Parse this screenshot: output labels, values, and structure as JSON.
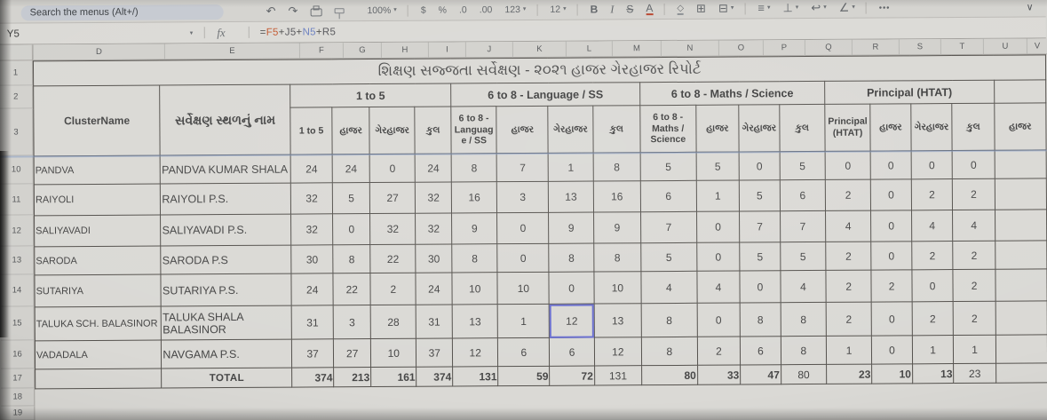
{
  "icons": {
    "undo": "↶",
    "redo": "↷",
    "dropdown": "▾",
    "fill_color": "◇",
    "borders": "⊞",
    "merge_cells": "⊟",
    "horizontal_align": "≡",
    "vertical_align": "⊥",
    "text_wrap": "↩",
    "text_rotation": "∠",
    "more_toolbar": "•••",
    "collapse": "∨"
  },
  "toolbar": {
    "search_placeholder": "Search the menus (Alt+/)",
    "zoom_value": "100%",
    "format_currency": "$",
    "format_percent": "%",
    "format_decrease_decimal": ".0",
    "format_increase_decimal": ".00",
    "format_more": "123",
    "font_size_value": "12",
    "bold": "B",
    "italic": "I",
    "strikethrough": "S",
    "text_color": "A"
  },
  "formula_bar": {
    "name_box": "Y5",
    "fx_label": "fx",
    "formula_parts": [
      {
        "text": "=",
        "color": "#4d4d4d"
      },
      {
        "text": "F5",
        "color": "#c45a32"
      },
      {
        "text": "+",
        "color": "#4d4d4d"
      },
      {
        "text": "J5",
        "color": "#55555a"
      },
      {
        "text": "+",
        "color": "#4d4d4d"
      },
      {
        "text": "N5",
        "color": "#6a7fc0"
      },
      {
        "text": "+",
        "color": "#4d4d4d"
      },
      {
        "text": "R5",
        "color": "#55555a"
      }
    ]
  },
  "grid": {
    "column_letters": [
      "D",
      "E",
      "F",
      "G",
      "H",
      "I",
      "J",
      "K",
      "L",
      "M",
      "N",
      "O",
      "P",
      "Q",
      "R",
      "S",
      "T",
      "U",
      "V"
    ],
    "row_numbers": [
      "1",
      "2",
      "3",
      "10",
      "11",
      "12",
      "13",
      "14",
      "15",
      "16",
      "17",
      "18",
      "19"
    ]
  },
  "sheet": {
    "title": "શિક્ષણ સજ્જતા સર્વેક્ષણ - ૨૦૨૧ હાજર ગેરહાજર રિપોર્ટ",
    "header": {
      "cluster_label": "ClusterName",
      "place_label": "સર્વેક્ષણ સ્થળનું નામ",
      "groups": [
        "1 to 5",
        "6 to 8 - Language / SS",
        "6 to 8 - Maths / Science",
        "Principal (HTAT)"
      ],
      "subheaders": [
        "1 to 5",
        "હાજર",
        "ગેરહાજર",
        "કુલ",
        "6 to 8 - Language / SS",
        "હાજર",
        "ગેરહાજર",
        "કુલ",
        "6 to 8 - Maths / Science",
        "હાજર",
        "ગેરહાજર",
        "કુલ",
        "Principal (HTAT)",
        "હાજર",
        "ગેરહાજર",
        "કુલ"
      ],
      "partial_right_subheader": "હાજર"
    },
    "rows": [
      {
        "n": "10",
        "cluster": "PANDVA",
        "place": "PANDVA KUMAR SHALA",
        "values": [
          24,
          24,
          0,
          24,
          8,
          7,
          1,
          8,
          5,
          5,
          0,
          5,
          0,
          0,
          0,
          0
        ]
      },
      {
        "n": "11",
        "cluster": "RAIYOLI",
        "place": "RAIYOLI P.S.",
        "values": [
          32,
          5,
          27,
          32,
          16,
          3,
          13,
          16,
          6,
          1,
          5,
          6,
          2,
          0,
          2,
          2
        ]
      },
      {
        "n": "12",
        "cluster": "SALIYAVADI",
        "place": "SALIYAVADI P.S.",
        "values": [
          32,
          0,
          32,
          32,
          9,
          0,
          9,
          9,
          7,
          0,
          7,
          7,
          4,
          0,
          4,
          4
        ]
      },
      {
        "n": "13",
        "cluster": "SARODA",
        "place": "SARODA P.S",
        "values": [
          30,
          8,
          22,
          30,
          8,
          0,
          8,
          8,
          5,
          0,
          5,
          5,
          2,
          0,
          2,
          2
        ]
      },
      {
        "n": "14",
        "cluster": "SUTARIYA",
        "place": "SUTARIYA P.S.",
        "values": [
          24,
          22,
          2,
          24,
          10,
          10,
          0,
          10,
          4,
          4,
          0,
          4,
          2,
          2,
          0,
          2
        ]
      },
      {
        "n": "15",
        "cluster": "TALUKA SCH. BALASINOR",
        "place": "TALUKA SHALA BALASINOR",
        "values": [
          31,
          3,
          28,
          31,
          13,
          1,
          12,
          13,
          8,
          0,
          8,
          8,
          2,
          0,
          2,
          2
        ]
      },
      {
        "n": "16",
        "cluster": "VADADALA",
        "place": "NAVGAMA P.S.",
        "values": [
          37,
          27,
          10,
          37,
          12,
          6,
          6,
          12,
          8,
          2,
          6,
          8,
          1,
          0,
          1,
          1
        ]
      }
    ],
    "total_row": {
      "label": "TOTAL",
      "values": [
        374,
        213,
        161,
        374,
        131,
        59,
        72,
        131,
        80,
        33,
        47,
        80,
        23,
        10,
        13,
        23
      ]
    },
    "selected_cell": {
      "row": "15",
      "col": "L"
    },
    "accent_colors": {
      "selection_border": "#6a6fd0",
      "frozen_divider": "#7d96c8"
    }
  }
}
